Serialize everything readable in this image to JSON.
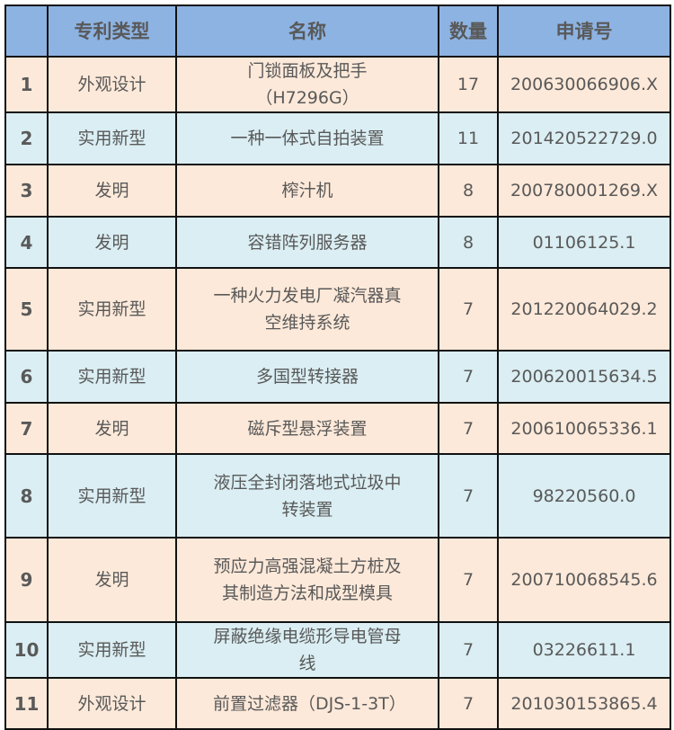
{
  "colors": {
    "header_bg": "#8db3e2",
    "row_odd_bg": "#fde9d9",
    "row_even_bg": "#daeef3",
    "text": "#595959"
  },
  "table": {
    "headers": [
      "",
      "专利类型",
      "名称",
      "数量",
      "申请号"
    ],
    "rows": [
      {
        "no": "1",
        "type": "外观设计",
        "name": "门锁面板及把手（H7296G）",
        "count": "17",
        "app_no": "200630066906.X"
      },
      {
        "no": "2",
        "type": "实用新型",
        "name": "一种一体式自拍装置",
        "count": "11",
        "app_no": "201420522729.0"
      },
      {
        "no": "3",
        "type": "发明",
        "name": "榨汁机",
        "count": "8",
        "app_no": "200780001269.X"
      },
      {
        "no": "4",
        "type": "发明",
        "name": "容错阵列服务器",
        "count": "8",
        "app_no": "01106125.1"
      },
      {
        "no": "5",
        "type": "实用新型",
        "name": "一种火力发电厂凝汽器真空维持系统",
        "count": "7",
        "app_no": "201220064029.2"
      },
      {
        "no": "6",
        "type": "实用新型",
        "name": "多国型转接器",
        "count": "7",
        "app_no": "200620015634.5"
      },
      {
        "no": "7",
        "type": "发明",
        "name": "磁斥型悬浮装置",
        "count": "7",
        "app_no": "200610065336.1"
      },
      {
        "no": "8",
        "type": "实用新型",
        "name": "液压全封闭落地式垃圾中转装置",
        "count": "7",
        "app_no": "98220560.0"
      },
      {
        "no": "9",
        "type": "发明",
        "name": "预应力高强混凝土方桩及其制造方法和成型模具",
        "count": "7",
        "app_no": "200710068545.6"
      },
      {
        "no": "10",
        "type": "实用新型",
        "name": "屏蔽绝缘电缆形导电管母线",
        "count": "7",
        "app_no": "03226611.1"
      },
      {
        "no": "11",
        "type": "外观设计",
        "name": "前置过滤器（DJS-1-3T）",
        "count": "7",
        "app_no": "201030153865.4"
      }
    ]
  }
}
